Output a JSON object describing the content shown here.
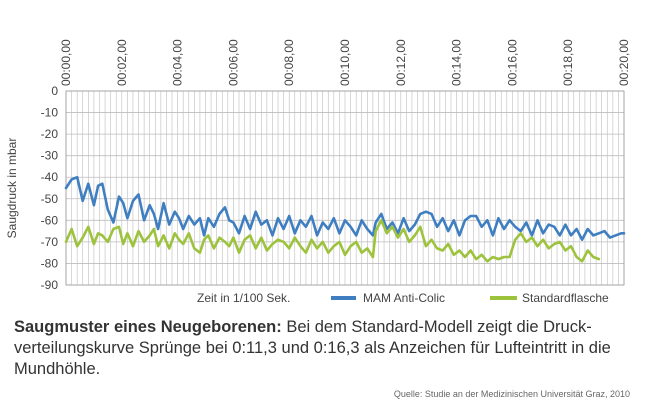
{
  "chart_data": {
    "type": "line",
    "ylabel": "Saugdruck in mbar",
    "ylim": [
      -90,
      0
    ],
    "y_ticks": [
      "0",
      "-10",
      "-20",
      "-30",
      "-40",
      "-50",
      "-60",
      "-70",
      "-80",
      "-90"
    ],
    "x_ticks": [
      "00:00,00",
      "00:02,00",
      "00:04,00",
      "00:06,00",
      "00:08,00",
      "00:10,00",
      "00:12,00",
      "00:14,00",
      "00:16,00",
      "00:18,00",
      "00:20,00"
    ],
    "x_unit_label": "Zeit in 1/100 Sek.",
    "grid": true,
    "legend_position": "bottom-right",
    "series": [
      {
        "name": "MAM Anti-Colic",
        "color": "#3f7fc1",
        "x": [
          0.0,
          0.2,
          0.4,
          0.6,
          0.8,
          1.0,
          1.15,
          1.3,
          1.5,
          1.7,
          1.9,
          2.05,
          2.2,
          2.4,
          2.6,
          2.8,
          3.0,
          3.15,
          3.3,
          3.5,
          3.7,
          3.9,
          4.05,
          4.2,
          4.4,
          4.6,
          4.8,
          4.95,
          5.1,
          5.3,
          5.5,
          5.7,
          5.85,
          6.0,
          6.2,
          6.4,
          6.6,
          6.8,
          7.0,
          7.2,
          7.4,
          7.6,
          7.8,
          8.0,
          8.2,
          8.4,
          8.6,
          8.8,
          9.0,
          9.2,
          9.4,
          9.6,
          9.8,
          10.0,
          10.2,
          10.4,
          10.6,
          10.8,
          11.0,
          11.1,
          11.3,
          11.5,
          11.7,
          11.9,
          12.1,
          12.3,
          12.5,
          12.7,
          12.9,
          13.1,
          13.3,
          13.5,
          13.7,
          13.9,
          14.1,
          14.3,
          14.5,
          14.7,
          14.9,
          15.1,
          15.3,
          15.5,
          15.7,
          15.9,
          16.1,
          16.3,
          16.5,
          16.7,
          16.9,
          17.1,
          17.3,
          17.5,
          17.7,
          17.9,
          18.1,
          18.3,
          18.5,
          18.7,
          18.9,
          19.1,
          19.3,
          19.5,
          19.7,
          19.9,
          20.0
        ],
        "values": [
          -45,
          -41,
          -40,
          -51,
          -43,
          -53,
          -44,
          -43,
          -55,
          -61,
          -49,
          -52,
          -59,
          -51,
          -48,
          -60,
          -53,
          -57,
          -64,
          -52,
          -62,
          -56,
          -59,
          -64,
          -58,
          -62,
          -59,
          -67,
          -59,
          -63,
          -57,
          -54,
          -60,
          -61,
          -66,
          -58,
          -64,
          -56,
          -62,
          -60,
          -67,
          -59,
          -64,
          -58,
          -66,
          -60,
          -63,
          -58,
          -67,
          -61,
          -64,
          -59,
          -66,
          -60,
          -63,
          -67,
          -60,
          -64,
          -67,
          -61,
          -57,
          -64,
          -61,
          -66,
          -59,
          -65,
          -62,
          -57,
          -56,
          -57,
          -63,
          -59,
          -65,
          -60,
          -67,
          -60,
          -58,
          -58,
          -63,
          -60,
          -67,
          -59,
          -64,
          -60,
          -63,
          -65,
          -61,
          -67,
          -60,
          -66,
          -62,
          -63,
          -67,
          -62,
          -67,
          -64,
          -69,
          -64,
          -67,
          -66,
          -65,
          -68,
          -67,
          -66,
          -66
        ]
      },
      {
        "name": "Standardflasche",
        "color": "#9dc33d",
        "x": [
          0.0,
          0.2,
          0.4,
          0.6,
          0.8,
          1.0,
          1.15,
          1.3,
          1.5,
          1.7,
          1.9,
          2.05,
          2.2,
          2.4,
          2.6,
          2.8,
          3.0,
          3.15,
          3.3,
          3.5,
          3.7,
          3.9,
          4.05,
          4.2,
          4.4,
          4.6,
          4.8,
          4.95,
          5.1,
          5.3,
          5.5,
          5.7,
          5.85,
          6.0,
          6.2,
          6.4,
          6.6,
          6.8,
          7.0,
          7.2,
          7.4,
          7.6,
          7.8,
          8.0,
          8.2,
          8.4,
          8.6,
          8.8,
          9.0,
          9.2,
          9.4,
          9.6,
          9.8,
          10.0,
          10.2,
          10.4,
          10.6,
          10.8,
          11.0,
          11.1,
          11.3,
          11.5,
          11.7,
          11.9,
          12.1,
          12.3,
          12.5,
          12.7,
          12.9,
          13.1,
          13.3,
          13.5,
          13.7,
          13.9,
          14.1,
          14.3,
          14.5,
          14.7,
          14.9,
          15.1,
          15.3,
          15.5,
          15.7,
          15.9,
          16.1,
          16.3,
          16.5,
          16.7,
          16.9,
          17.1,
          17.3,
          17.5,
          17.7,
          17.9,
          18.1,
          18.3,
          18.5,
          18.7,
          18.9,
          19.1
        ],
        "values": [
          -70,
          -64,
          -72,
          -68,
          -63,
          -71,
          -66,
          -67,
          -70,
          -64,
          -63,
          -71,
          -66,
          -72,
          -65,
          -70,
          -67,
          -64,
          -72,
          -67,
          -73,
          -66,
          -69,
          -71,
          -66,
          -73,
          -75,
          -69,
          -67,
          -73,
          -68,
          -70,
          -72,
          -68,
          -75,
          -69,
          -67,
          -73,
          -68,
          -74,
          -71,
          -69,
          -70,
          -73,
          -68,
          -72,
          -75,
          -69,
          -73,
          -70,
          -75,
          -72,
          -70,
          -76,
          -72,
          -70,
          -75,
          -73,
          -77,
          -65,
          -60,
          -66,
          -63,
          -68,
          -64,
          -70,
          -67,
          -63,
          -72,
          -69,
          -73,
          -74,
          -71,
          -76,
          -74,
          -77,
          -74,
          -78,
          -76,
          -79,
          -77,
          -78,
          -77,
          -77,
          -69,
          -66,
          -70,
          -68,
          -72,
          -69,
          -73,
          -71,
          -70,
          -74,
          -72,
          -77,
          -79,
          -74,
          -77,
          -78
        ]
      }
    ]
  },
  "caption": {
    "bold": "Saugmuster eines Neugeborenen:",
    "text": " Bei dem Standard-Modell zeigt die Druck-verteilungskurve Sprünge bei 0:11,3 und 0:16,3 als Anzeichen für Lufteintritt in die Mundhöhle."
  },
  "source": "Quelle: Studie an der Medizinischen Universität Graz, 2010"
}
